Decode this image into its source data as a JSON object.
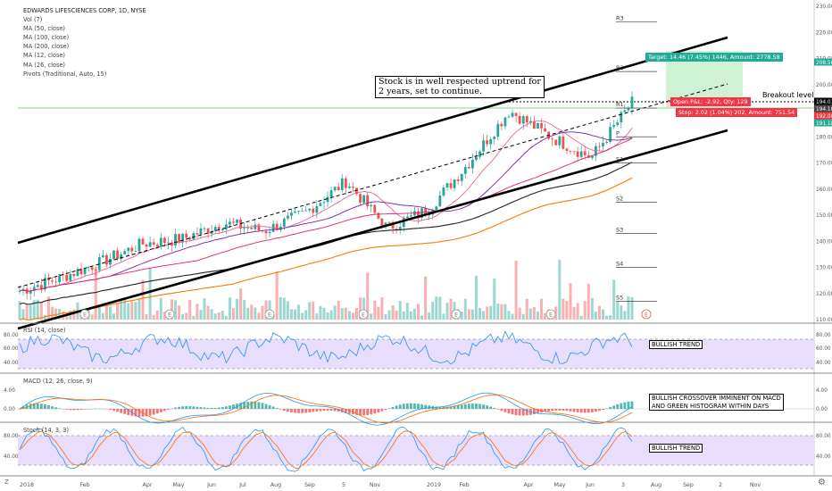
{
  "header": {
    "symbol_line": "EDWARDS LIFESCIENCES CORP, 1D, NYSE",
    "indicators": [
      "Vol (7)",
      "MA (50, close)",
      "MA (100, close)",
      "MA (200, close)",
      "MA (12, close)",
      "MA (26, close)",
      "Pivots (Traditional, Auto, 15)"
    ]
  },
  "annotations": {
    "uptrend_note": "Stock is in well respected uptrend for\n2 years, set to continue.",
    "breakout": "Breakout level",
    "rsi_note": "BULLISH TREND",
    "macd_note": "BULLISH CROSSOVER IMMINENT ON MACD\nAND GREEN HISTOGRAM WITHIN DAYS",
    "stoch_note": "BULLISH TREND"
  },
  "trade": {
    "target": "Target: 14.46 (7.45%) 1446, Amount: 2778.58",
    "open_pnl": "Open P&L: -2.92, Qty: 129",
    "stop": "Stop: 2.02 (1.04%) 202, Amount: 751.54"
  },
  "pivots": {
    "levels": [
      "R3",
      "R2",
      "R1",
      "P",
      "S1",
      "S2",
      "S3",
      "S4",
      "S5"
    ],
    "values": [
      224,
      205,
      191,
      180,
      170,
      155,
      143,
      130,
      117
    ]
  },
  "price_scale": {
    "ticks": [
      "230.00",
      "220.00",
      "210.00",
      "200.00",
      "190.00",
      "180.00",
      "170.00",
      "160.00",
      "150.00",
      "140.00",
      "130.00",
      "120.00",
      "110.00"
    ],
    "badges": [
      {
        "label": "208.56",
        "value": 208.56,
        "color": "#22ab94"
      },
      {
        "label": "194.01",
        "value": 194.01,
        "color": "#000000"
      },
      {
        "label": "194.10",
        "value": 194.1,
        "color": "#444444"
      },
      {
        "label": "192.08",
        "value": 192.08,
        "color": "#f23645"
      },
      {
        "label": "191.18",
        "value": 191.18,
        "color": "#22ab94"
      }
    ]
  },
  "rsi": {
    "title": "RSI (14, close)",
    "ticks": [
      "80.00",
      "60.00",
      "40.00"
    ]
  },
  "macd": {
    "title": "MACD (12, 26, close, 9)",
    "ticks": [
      "4.00",
      "0.00"
    ]
  },
  "stoch": {
    "title": "Stoch (14, 3, 3)",
    "ticks": [
      "80.00",
      "40.00"
    ]
  },
  "time_axis": {
    "labels": [
      "2018",
      "Feb",
      "Apr",
      "May",
      "Jun",
      "Jul",
      "Aug",
      "Sep",
      "5",
      "Nov",
      "2019",
      "Feb",
      "Apr",
      "May",
      "Jun",
      "3",
      "Aug",
      "Sep",
      "2",
      "Nov"
    ]
  },
  "corner": {
    "z_label": "Z",
    "gear": "gear-icon"
  },
  "colors": {
    "up": "#26a69a",
    "down": "#ef5350",
    "ma50": "#e91e63",
    "ma100": "#222222",
    "ma200": "#f57c00",
    "ma12": "#f06292",
    "ma26": "#7b1fa2",
    "rsi_line": "#2196f3",
    "macd_line": "#2196f3",
    "signal_line": "#ff6d00",
    "band": "#e9ddfd",
    "target_zone": "#c8f0cc",
    "stop_zone": "#ffd5d5"
  },
  "chart_data": {
    "type": "candlestick",
    "title": "EDWARDS LIFESCIENCES CORP, 1D, NYSE",
    "x": [
      "2018",
      "Feb",
      "Apr",
      "May",
      "Jun",
      "Jul",
      "Aug",
      "Sep",
      "5",
      "Nov",
      "2019",
      "Feb",
      "Apr",
      "May",
      "Jun",
      "3"
    ],
    "close_approx": [
      121,
      126,
      132,
      139,
      141,
      147,
      144,
      151,
      163,
      145,
      152,
      170,
      190,
      180,
      172,
      193
    ],
    "ylim": [
      110,
      232
    ],
    "channel": {
      "upper_start": 139,
      "upper_end": 218,
      "lower_start": 108,
      "lower_end": 183
    },
    "rsi_range": [
      30,
      80
    ],
    "macd_range": [
      -2,
      5
    ],
    "stoch_range": [
      0,
      100
    ]
  }
}
